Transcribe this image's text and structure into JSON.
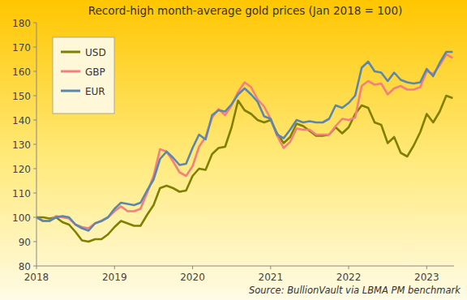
{
  "chart_data": {
    "type": "line",
    "title": "Record-high month-average gold prices (Jan 2018 = 100)",
    "source": "Source: BullionVault via LBMA PM benchmark",
    "x": [
      2018,
      2018.083,
      2018.167,
      2018.25,
      2018.333,
      2018.417,
      2018.5,
      2018.583,
      2018.667,
      2018.75,
      2018.833,
      2018.917,
      2019,
      2019.083,
      2019.167,
      2019.25,
      2019.333,
      2019.417,
      2019.5,
      2019.583,
      2019.667,
      2019.75,
      2019.833,
      2019.917,
      2020,
      2020.083,
      2020.167,
      2020.25,
      2020.333,
      2020.417,
      2020.5,
      2020.583,
      2020.667,
      2020.75,
      2020.833,
      2020.917,
      2021,
      2021.083,
      2021.167,
      2021.25,
      2021.333,
      2021.417,
      2021.5,
      2021.583,
      2021.667,
      2021.75,
      2021.833,
      2021.917,
      2022,
      2022.083,
      2022.167,
      2022.25,
      2022.333,
      2022.417,
      2022.5,
      2022.583,
      2022.667,
      2022.75,
      2022.833,
      2022.917,
      2023,
      2023.083,
      2023.167,
      2023.25,
      2023.333
    ],
    "series": [
      {
        "name": "USD",
        "color": "#7f7f00",
        "values": [
          100,
          100,
          99.5,
          100,
          98,
          97,
          94,
          90.5,
          90,
          91,
          91,
          93,
          96,
          98.5,
          97.5,
          96.5,
          96.5,
          101,
          105,
          112,
          113,
          112,
          110.5,
          111,
          117,
          120,
          119.5,
          126,
          128.5,
          129,
          137,
          148,
          144,
          142.5,
          140,
          139,
          140,
          134.5,
          130.5,
          133,
          138.5,
          137.5,
          135.5,
          133.5,
          133.5,
          134,
          137,
          134.5,
          137,
          142.5,
          146,
          145,
          139,
          138,
          130.5,
          133,
          126.5,
          125,
          129.5,
          135,
          142.5,
          139,
          143.5,
          150,
          149
        ]
      },
      {
        "name": "GBP",
        "color": "#f47f7f",
        "values": [
          100,
          98.5,
          98.5,
          100.5,
          100,
          99.5,
          97,
          96,
          95.5,
          97.5,
          98.5,
          100,
          102.5,
          104.5,
          102.5,
          102.5,
          103.5,
          110,
          117,
          128,
          127,
          123,
          118.5,
          117,
          121,
          129,
          133,
          141,
          144.5,
          142,
          146,
          151.5,
          155.5,
          153.5,
          148.5,
          145.5,
          140.5,
          133.5,
          128.5,
          131,
          136.5,
          136,
          136,
          134,
          134,
          134,
          137.5,
          140.5,
          140,
          141,
          154,
          156,
          154.5,
          155,
          150.5,
          153,
          154,
          152.5,
          152.5,
          153.5,
          160,
          159,
          162.5,
          167,
          165.5
        ]
      },
      {
        "name": "EUR",
        "color": "#5a87ad",
        "values": [
          100,
          98.5,
          98.5,
          100,
          100.5,
          100,
          97,
          95.5,
          94.5,
          97.5,
          98.5,
          100,
          103.5,
          106,
          105.5,
          105,
          106,
          111,
          115.5,
          124,
          127,
          124.5,
          121.5,
          122,
          128.5,
          134,
          132,
          142,
          144,
          143.5,
          146.5,
          150.5,
          153,
          150.5,
          147.5,
          141.5,
          140.5,
          134,
          132.5,
          136,
          140,
          139,
          139.5,
          139,
          139,
          140.5,
          146,
          145,
          147,
          150,
          161.5,
          164,
          160,
          159.5,
          156,
          159.5,
          156.5,
          155.5,
          155,
          155.5,
          161,
          158,
          163.5,
          168,
          168
        ]
      }
    ],
    "xlim": [
      2018,
      2023.35
    ],
    "xticks": [
      2018,
      2019,
      2020,
      2021,
      2022,
      2023
    ],
    "ylim": [
      80,
      180
    ],
    "yticks": [
      80,
      90,
      100,
      110,
      120,
      130,
      140,
      150,
      160,
      170,
      180
    ],
    "grid": false,
    "legend": "upper left"
  }
}
